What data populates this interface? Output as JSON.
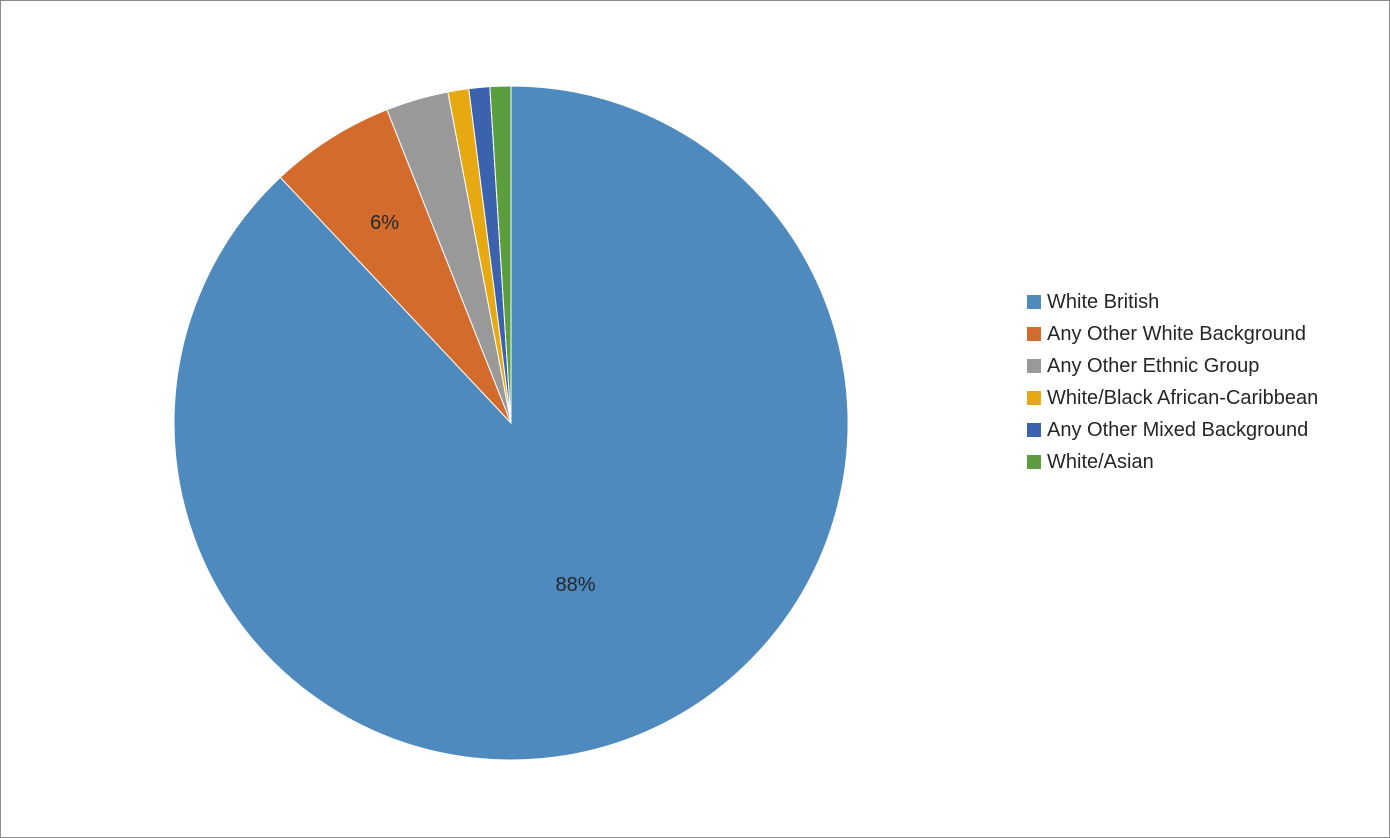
{
  "chart_data": {
    "type": "pie",
    "title": "",
    "start_angle_deg": 0,
    "direction": "clockwise",
    "legend_position": "right",
    "series": [
      {
        "categories": [
          "White British",
          "Any Other White Background",
          "Any Other Ethnic Group",
          "White/Black African-Caribbean",
          "Any Other Mixed Background",
          "White/Asian"
        ],
        "values": [
          88,
          6,
          3,
          1,
          1,
          1
        ],
        "data_labels": [
          "88%",
          "6%",
          "",
          "",
          "",
          ""
        ],
        "colors": [
          "#4f8abf",
          "#d26b2b",
          "#999999",
          "#e6a911",
          "#3a62ad",
          "#5c9e3d"
        ]
      }
    ]
  }
}
